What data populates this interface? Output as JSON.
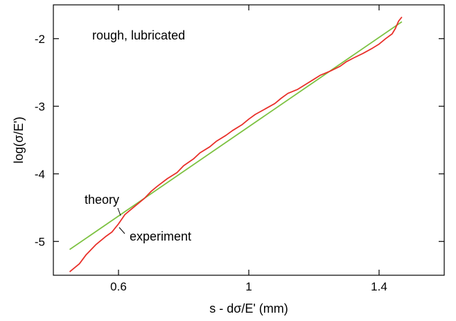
{
  "chart_data": {
    "type": "line",
    "title": "",
    "xlabel": "s - dσ/E' (mm)",
    "ylabel": "log(σ/E')",
    "xlim": [
      0.4,
      1.6
    ],
    "ylim": [
      -5.5,
      -1.5
    ],
    "xticks": [
      0.6,
      1,
      1.4
    ],
    "xtick_labels": [
      "0.6",
      "1",
      "1.4"
    ],
    "yticks": [
      -5,
      -4,
      -3,
      -2
    ],
    "ytick_labels": [
      "-5",
      "-4",
      "-3",
      "-2"
    ],
    "grid": false,
    "annotations": [
      {
        "text": "rough, lubricated"
      },
      {
        "text": "theory",
        "points_to": "theory"
      },
      {
        "text": "experiment",
        "points_to": "experiment"
      }
    ],
    "series": [
      {
        "name": "theory",
        "color": "#7dc242",
        "x": [
          0.45,
          1.47
        ],
        "y": [
          -5.12,
          -1.75
        ]
      },
      {
        "name": "experiment",
        "color": "#e8302a",
        "x": [
          0.45,
          0.48,
          0.5,
          0.53,
          0.56,
          0.58,
          0.6,
          0.62,
          0.65,
          0.68,
          0.7,
          0.72,
          0.75,
          0.78,
          0.8,
          0.83,
          0.85,
          0.88,
          0.9,
          0.93,
          0.95,
          0.98,
          1.0,
          1.02,
          1.05,
          1.08,
          1.1,
          1.12,
          1.15,
          1.18,
          1.2,
          1.22,
          1.25,
          1.28,
          1.3,
          1.32,
          1.35,
          1.38,
          1.4,
          1.42,
          1.44,
          1.45,
          1.46,
          1.47
        ],
        "y": [
          -5.45,
          -5.33,
          -5.2,
          -5.05,
          -4.93,
          -4.86,
          -4.74,
          -4.6,
          -4.48,
          -4.36,
          -4.26,
          -4.18,
          -4.07,
          -3.98,
          -3.88,
          -3.78,
          -3.69,
          -3.6,
          -3.52,
          -3.43,
          -3.36,
          -3.27,
          -3.19,
          -3.12,
          -3.04,
          -2.96,
          -2.88,
          -2.81,
          -2.75,
          -2.66,
          -2.6,
          -2.54,
          -2.48,
          -2.41,
          -2.34,
          -2.29,
          -2.22,
          -2.14,
          -2.08,
          -2.0,
          -1.93,
          -1.85,
          -1.74,
          -1.68
        ]
      }
    ]
  }
}
